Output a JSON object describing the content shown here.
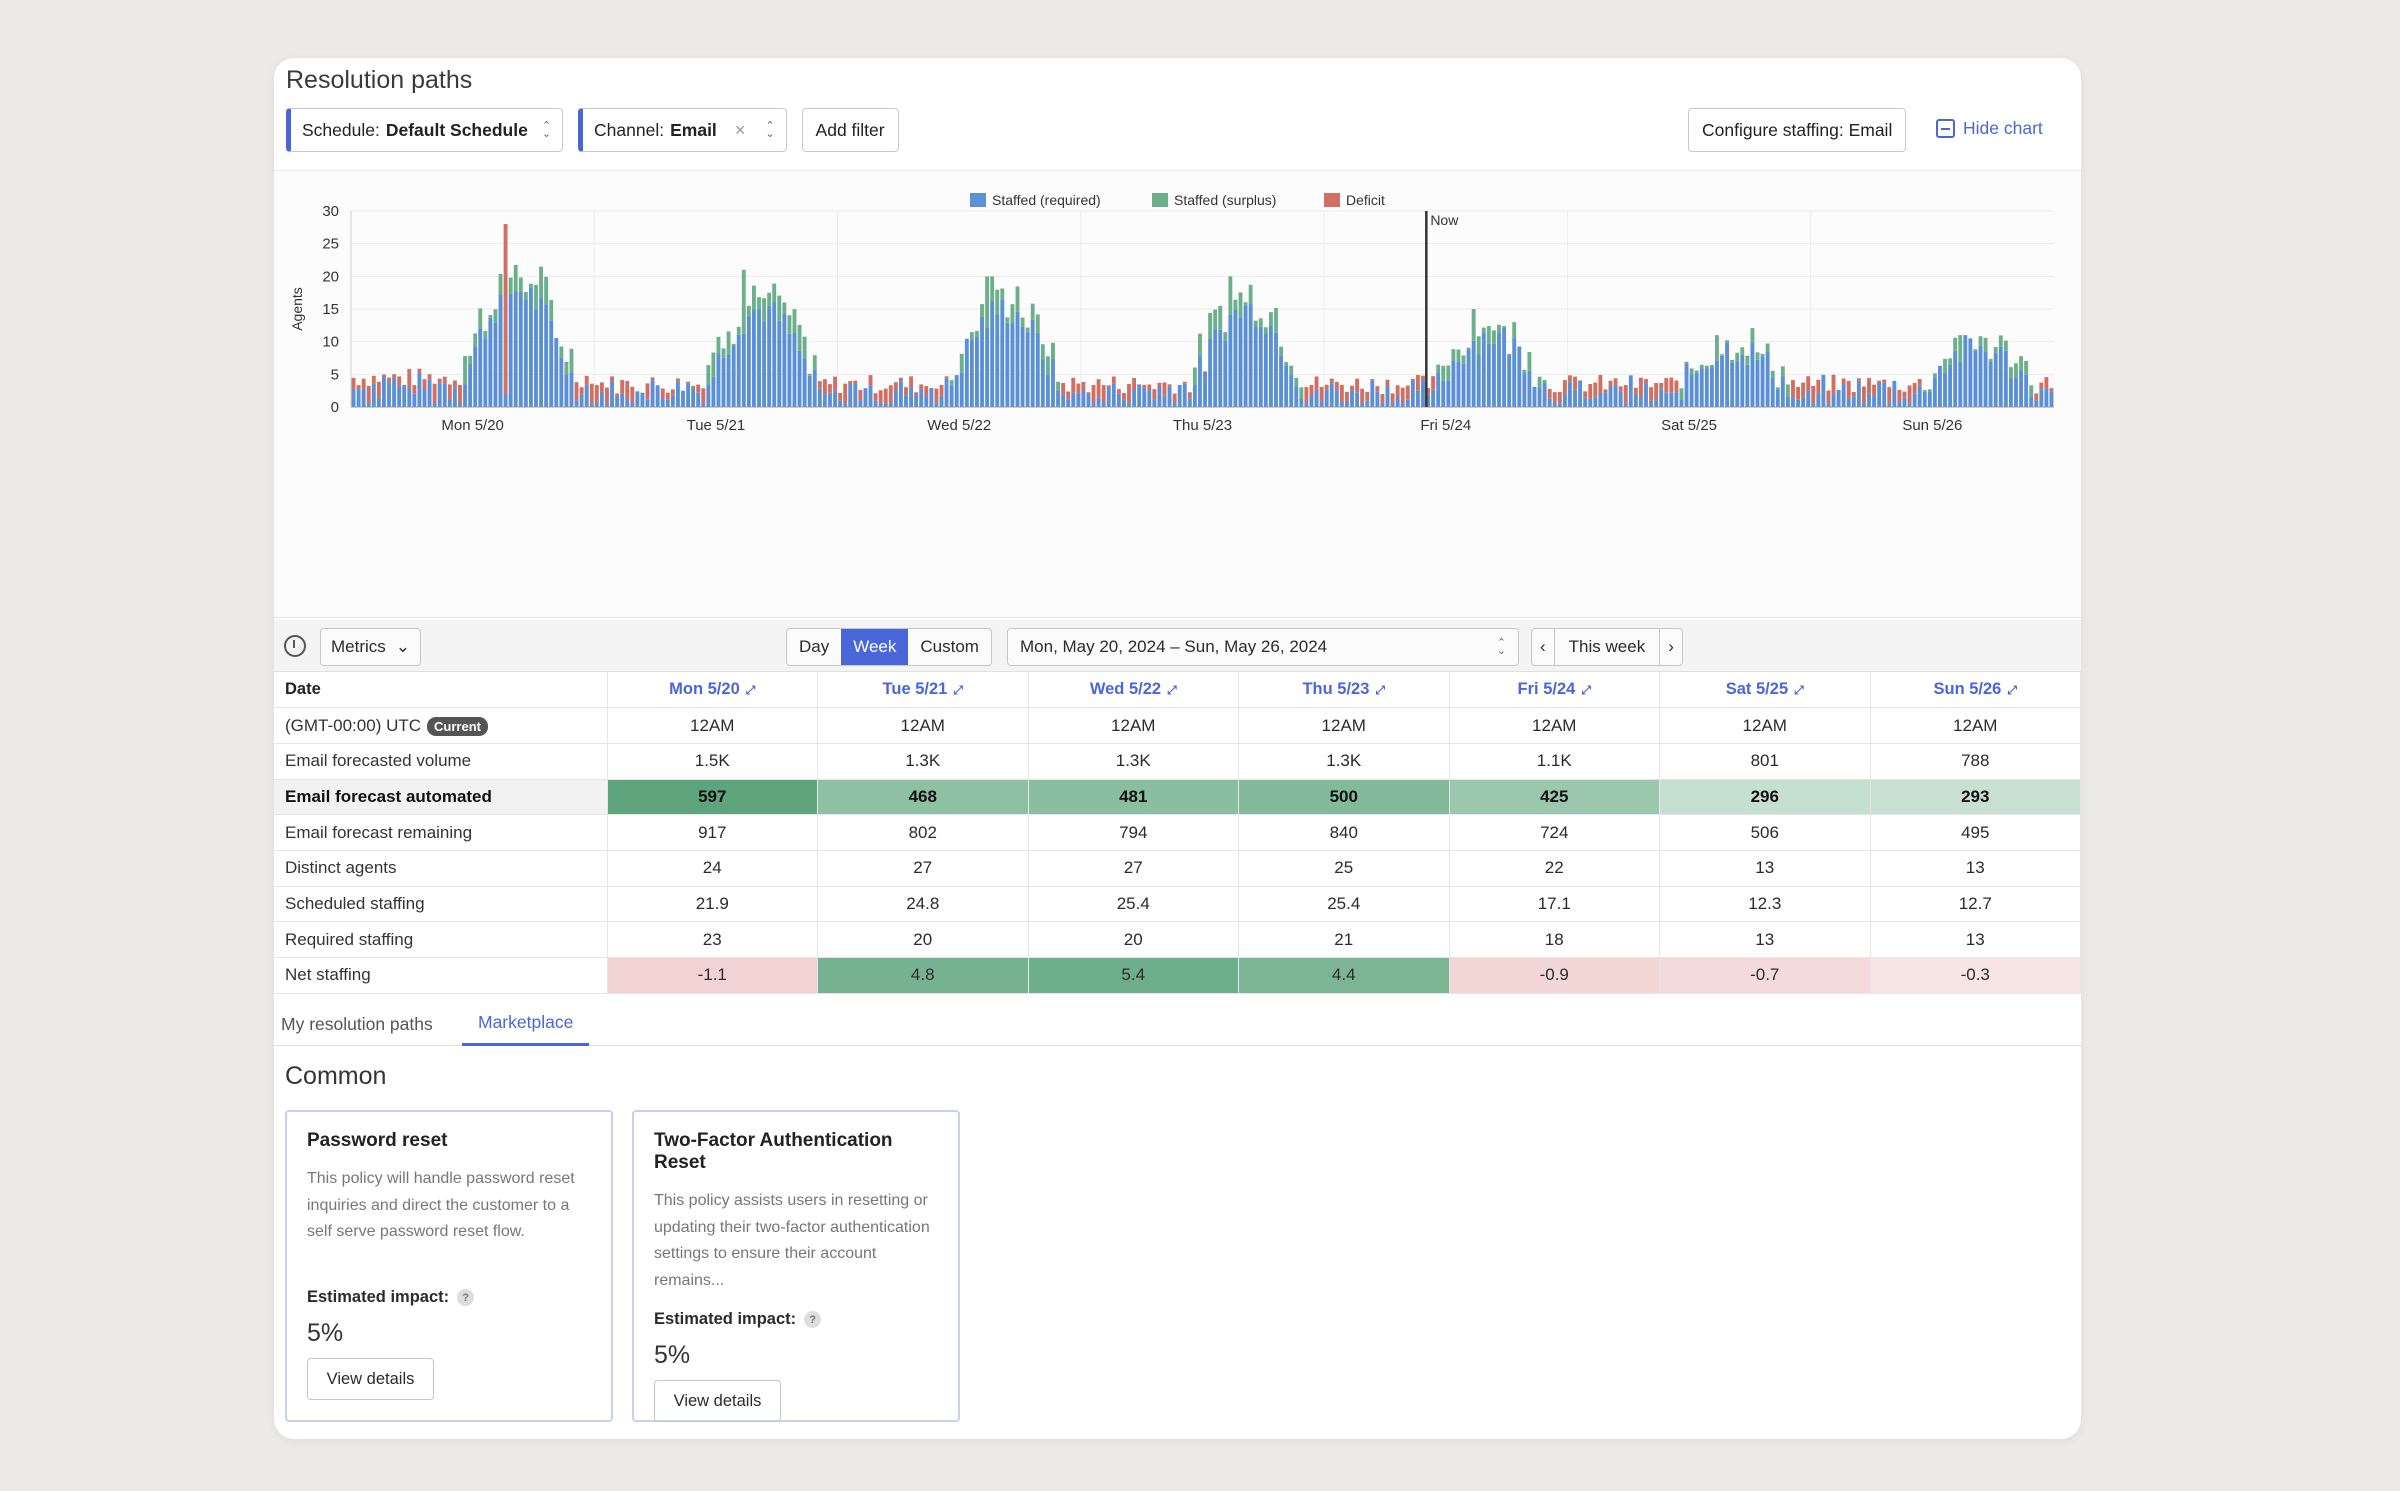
{
  "title": "Resolution paths",
  "filters": {
    "schedule": {
      "prefix": "Schedule:",
      "value": "Default Schedule"
    },
    "channel": {
      "prefix": "Channel:",
      "value": "Email",
      "clear": "×"
    },
    "add_filter": "Add filter"
  },
  "configure_button": "Configure staffing: Email",
  "hide_chart": "Hide chart",
  "chart_data": {
    "type": "bar",
    "stacked": true,
    "ylabel": "Agents",
    "ylim": [
      0,
      30
    ],
    "yticks": [
      0,
      5,
      10,
      15,
      20,
      25,
      30
    ],
    "x_day_labels": [
      "Mon 5/20",
      "Tue 5/21",
      "Wed 5/22",
      "Thu 5/23",
      "Fri 5/24",
      "Sat 5/25",
      "Sun 5/26"
    ],
    "bars_per_day": 48,
    "now_label": "Now",
    "now_position_days": 4.42,
    "legend": [
      "Staffed (required)",
      "Staffed (surplus)",
      "Deficit"
    ],
    "legend_position": "top-center",
    "grid": true,
    "colors": {
      "required": "#5b8fd6",
      "surplus": "#6cb08b",
      "deficit": "#d16f62"
    },
    "daily_profile": [
      {
        "day": "Mon 5/20",
        "night_level": 3,
        "peak_level": 17,
        "max_spike": 28
      },
      {
        "day": "Tue 5/21",
        "night_level": 2,
        "peak_level": 14,
        "max_spike": 21
      },
      {
        "day": "Wed 5/22",
        "night_level": 2,
        "peak_level": 14,
        "max_spike": 20
      },
      {
        "day": "Thu 5/23",
        "night_level": 2,
        "peak_level": 14,
        "max_spike": 20
      },
      {
        "day": "Fri 5/24",
        "night_level": 2,
        "peak_level": 10,
        "max_spike": 15
      },
      {
        "day": "Sat 5/25",
        "night_level": 2,
        "peak_level": 8,
        "max_spike": 11
      },
      {
        "day": "Sun 5/26",
        "night_level": 2,
        "peak_level": 8,
        "max_spike": 11
      }
    ]
  },
  "toolbar": {
    "metrics": "Metrics",
    "views": [
      "Day",
      "Week",
      "Custom"
    ],
    "active_view": "Week",
    "date_range": "Mon, May 20, 2024 – Sun, May 26, 2024",
    "this_week": "This week"
  },
  "table": {
    "date_header": "Date",
    "columns": [
      "Mon 5/20",
      "Tue 5/21",
      "Wed 5/22",
      "Thu 5/23",
      "Fri 5/24",
      "Sat 5/25",
      "Sun 5/26"
    ],
    "tz_label": "(GMT-00:00) UTC",
    "current_badge": "Current",
    "time_values": [
      "12AM",
      "12AM",
      "12AM",
      "12AM",
      "12AM",
      "12AM",
      "12AM"
    ],
    "rows": [
      {
        "label": "Email forecasted volume",
        "values": [
          "1.5K",
          "1.3K",
          "1.3K",
          "1.3K",
          "1.1K",
          "801",
          "788"
        ]
      },
      {
        "label": "Email forecast automated",
        "values": [
          "597",
          "468",
          "481",
          "500",
          "425",
          "296",
          "293"
        ],
        "heat": [
          1.0,
          0.62,
          0.65,
          0.7,
          0.52,
          0.18,
          0.17
        ]
      },
      {
        "label": "Email forecast remaining",
        "values": [
          "917",
          "802",
          "794",
          "840",
          "724",
          "506",
          "495"
        ]
      },
      {
        "label": "Distinct agents",
        "values": [
          "24",
          "27",
          "27",
          "25",
          "22",
          "13",
          "13"
        ]
      },
      {
        "label": "Scheduled staffing",
        "values": [
          "21.9",
          "24.8",
          "25.4",
          "25.4",
          "17.1",
          "12.3",
          "12.7"
        ]
      },
      {
        "label": "Required staffing",
        "values": [
          "23",
          "20",
          "20",
          "21",
          "18",
          "13",
          "13"
        ]
      },
      {
        "label": "Net staffing",
        "values": [
          "-1.1",
          "4.8",
          "5.4",
          "4.4",
          "-0.9",
          "-0.7",
          "-0.3"
        ]
      }
    ]
  },
  "tabs": [
    "My resolution paths",
    "Marketplace"
  ],
  "active_tab": "Marketplace",
  "section_title": "Common",
  "cards": [
    {
      "title": "Password reset",
      "desc": "This policy will handle password reset inquiries and direct the customer to a self serve password reset flow.",
      "impact_label": "Estimated impact:",
      "impact": "5%",
      "button": "View details"
    },
    {
      "title": "Two-Factor Authentication Reset",
      "desc": "This policy assists users in resetting or updating their two-factor authentication settings to ensure their account remains...",
      "impact_label": "Estimated impact:",
      "impact": "5%",
      "button": "View details"
    }
  ]
}
